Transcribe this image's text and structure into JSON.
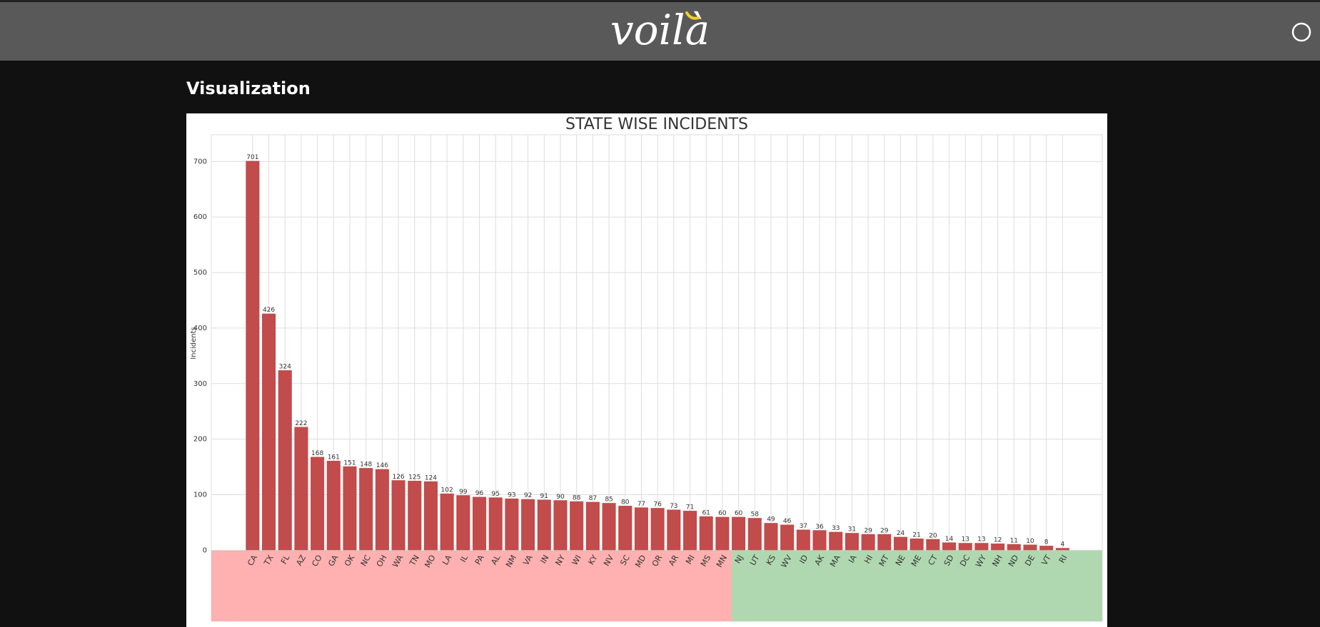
{
  "header": {
    "logo": "voilà"
  },
  "section_title": "Visualization",
  "chart_data": {
    "type": "bar",
    "title": "STATE WISE INCIDENTS",
    "y_label": "Incidents",
    "categories": [
      "CA",
      "TX",
      "FL",
      "AZ",
      "CO",
      "GA",
      "OK",
      "NC",
      "OH",
      "WA",
      "TN",
      "MO",
      "LA",
      "IL",
      "PA",
      "AL",
      "NM",
      "VA",
      "IN",
      "NY",
      "WI",
      "KY",
      "NV",
      "SC",
      "MD",
      "OR",
      "AR",
      "MI",
      "MS",
      "MN",
      "NJ",
      "UT",
      "KS",
      "WV",
      "ID",
      "AK",
      "MA",
      "IA",
      "HI",
      "MT",
      "NE",
      "ME",
      "CT",
      "SD",
      "DC",
      "WY",
      "NH",
      "ND",
      "DE",
      "VT",
      "RI"
    ],
    "values": [
      701,
      426,
      324,
      222,
      168,
      161,
      151,
      148,
      146,
      126,
      125,
      124,
      102,
      99,
      96,
      95,
      93,
      92,
      91,
      90,
      88,
      87,
      85,
      80,
      77,
      76,
      73,
      71,
      61,
      60,
      60,
      58,
      49,
      46,
      37,
      36,
      33,
      31,
      29,
      29,
      24,
      21,
      20,
      14,
      13,
      13,
      12,
      11,
      10,
      8,
      4
    ],
    "color": "#c24b4b",
    "ylim": [
      -128,
      748
    ],
    "yticks": [
      0,
      100,
      200,
      300,
      400,
      500,
      600,
      700
    ],
    "grid": true
  }
}
